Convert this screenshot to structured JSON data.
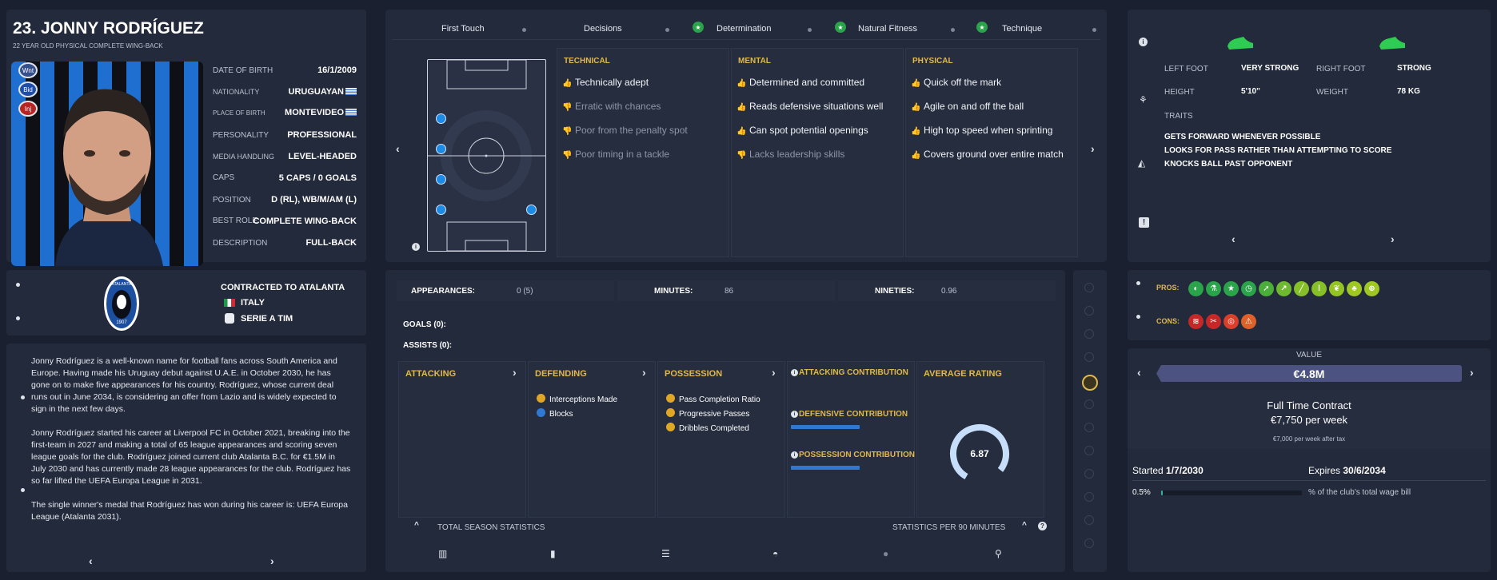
{
  "player": {
    "name": "23. JONNY RODRÍGUEZ",
    "subtitle": "22 YEAR OLD PHYSICAL COMPLETE WING-BACK",
    "badges": [
      "Wnt",
      "Bid",
      "Inj"
    ],
    "details": [
      {
        "label": "DATE OF BIRTH",
        "value": "16/1/2009"
      },
      {
        "label": "NATIONALITY",
        "value": "URUGUAYAN"
      },
      {
        "label": "PLACE OF BIRTH",
        "value": "MONTEVIDEO"
      },
      {
        "label": "PERSONALITY",
        "value": "PROFESSIONAL"
      },
      {
        "label": "MEDIA HANDLING",
        "value": "LEVEL-HEADED"
      },
      {
        "label": "CAPS",
        "value": "5 CAPS / 0 GOALS"
      },
      {
        "label": "POSITION",
        "value": "D (RL), WB/M/AM (L)"
      },
      {
        "label": "BEST ROLE",
        "value": "COMPLETE WING-BACK"
      },
      {
        "label": "DESCRIPTION",
        "value": "FULL-BACK"
      }
    ]
  },
  "club": {
    "contract_label": "CONTRACTED TO ATALANTA",
    "country": "ITALY",
    "league": "SERIE A TIM",
    "crest_top": "ATALANTA",
    "crest_year": "1907"
  },
  "bio": {
    "p1": "Jonny Rodríguez is a well-known name for football fans across South America and Europe. Having made his Uruguay debut against U.A.E. in October 2030, he has gone on to make five appearances for his country. Rodríguez, whose current deal runs out in June 2034, is considering an offer from Lazio and is widely expected to sign in the next few days.",
    "p2": "Jonny Rodríguez started his career at Liverpool FC in October 2021, breaking into the first-team in 2027 and making a total of 65 league appearances and scoring seven league goals for the club. Rodríguez joined current club Atalanta B.C. for €1.5M in July 2030 and has currently made 28 league appearances for the club. Rodríguez has so far lifted the UEFA Europa League in 2031.",
    "p3": "The single winner's medal that Rodríguez has won during his career is: UEFA Europa League (Atalanta 2031)."
  },
  "key_attrs": [
    "First Touch",
    "Decisions",
    "Determination",
    "Natural Fitness",
    "Technique"
  ],
  "attributes": {
    "technical": {
      "title": "TECHNICAL",
      "items": [
        {
          "text": "Technically adept",
          "positive": true
        },
        {
          "text": "Erratic with chances",
          "positive": false
        },
        {
          "text": "Poor from the penalty spot",
          "positive": false
        },
        {
          "text": "Poor timing in a tackle",
          "positive": false
        }
      ]
    },
    "mental": {
      "title": "MENTAL",
      "items": [
        {
          "text": "Determined and committed",
          "positive": true
        },
        {
          "text": "Reads defensive situations well",
          "positive": true
        },
        {
          "text": "Can spot potential openings",
          "positive": true
        },
        {
          "text": "Lacks leadership skills",
          "positive": false
        }
      ]
    },
    "physical": {
      "title": "PHYSICAL",
      "items": [
        {
          "text": "Quick off the mark",
          "positive": true
        },
        {
          "text": "Agile on and off the ball",
          "positive": true
        },
        {
          "text": "High top speed when sprinting",
          "positive": true
        },
        {
          "text": "Covers ground over entire match",
          "positive": true
        }
      ]
    }
  },
  "physique": {
    "left_foot_label": "LEFT FOOT",
    "left_foot": "VERY STRONG",
    "right_foot_label": "RIGHT FOOT",
    "right_foot": "STRONG",
    "height_label": "HEIGHT",
    "height": "5'10\"",
    "weight_label": "WEIGHT",
    "weight": "78 KG",
    "traits_label": "TRAITS",
    "traits": [
      "GETS FORWARD WHENEVER POSSIBLE",
      "LOOKS FOR PASS RATHER THAN ATTEMPTING TO SCORE",
      "KNOCKS BALL PAST OPPONENT"
    ]
  },
  "stats": {
    "appearances_label": "APPEARANCES:",
    "appearances": "0 (5)",
    "minutes_label": "MINUTES:",
    "minutes": "86",
    "nineties_label": "NINETIES:",
    "nineties": "0.96",
    "goals": "GOALS (0):",
    "assists": "ASSISTS (0):",
    "attacking": "ATTACKING",
    "defending": "DEFENDING",
    "defending_items": [
      "Interceptions Made",
      "Blocks"
    ],
    "possession": "POSSESSION",
    "possession_items": [
      "Pass Completion Ratio",
      "Progressive Passes",
      "Dribbles Completed"
    ],
    "attacking_contribution": "ATTACKING CONTRIBUTION",
    "defensive_contribution": "DEFENSIVE CONTRIBUTION",
    "possession_contribution": "POSSESSION CONTRIBUTION",
    "average_rating_label": "AVERAGE RATING",
    "average_rating": "6.87",
    "total_label": "TOTAL SEASON STATISTICS",
    "per90_label": "STATISTICS PER 90 MINUTES"
  },
  "pros_cons": {
    "pros_label": "PROS:",
    "cons_label": "CONS:"
  },
  "contract": {
    "value_label": "VALUE",
    "value": "€4.8M",
    "type": "Full Time Contract",
    "wage": "€7,750 per week",
    "after_tax": "€7,000 per week after tax",
    "started_label": "Started",
    "started": "1/7/2030",
    "expires_label": "Expires",
    "expires": "30/6/2034",
    "wage_pct": "0.5%",
    "wage_pct_value": 0.5,
    "wage_bill_label": "% of the club's total wage bill"
  },
  "colors": {
    "bg": "#1b2030",
    "panel": "#232a3b",
    "gold": "#e0b84c",
    "accent": "#2f79d3",
    "value_bar": "#4d5381"
  }
}
